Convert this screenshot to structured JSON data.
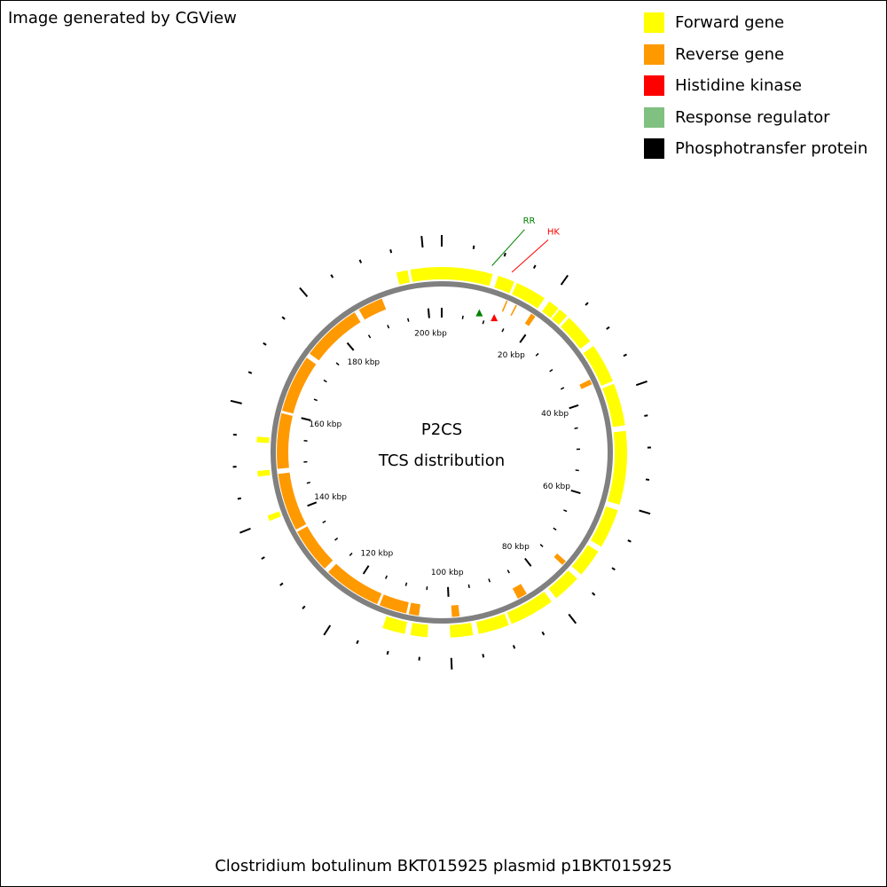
{
  "credit": "Image generated by CGView",
  "caption": "Clostridium botulinum BKT015925 plasmid p1BKT015925",
  "center_title": "P2CS",
  "center_subtitle": "TCS distribution",
  "legend": [
    {
      "label": "Forward gene",
      "color": "#ffff00"
    },
    {
      "label": "Reverse gene",
      "color": "#ff9900"
    },
    {
      "label": "Histidine kinase",
      "color": "#ff0000"
    },
    {
      "label": "Response regulator",
      "color": "#80c080"
    },
    {
      "label": "Phosphotransfer protein",
      "color": "#000000"
    }
  ],
  "sequence_length_kbp": 203,
  "ruler_labels": [
    "20 kbp",
    "40 kbp",
    "60 kbp",
    "80 kbp",
    "100 kbp",
    "120 kbp",
    "140 kbp",
    "160 kbp",
    "180 kbp",
    "200 kbp"
  ],
  "features": [
    {
      "label": "RR",
      "type": "Response regulator",
      "position_kbp": 8.5,
      "color": "#008000"
    },
    {
      "label": "HK",
      "type": "Histidine kinase",
      "position_kbp": 12.0,
      "color": "#ff0000"
    }
  ]
}
